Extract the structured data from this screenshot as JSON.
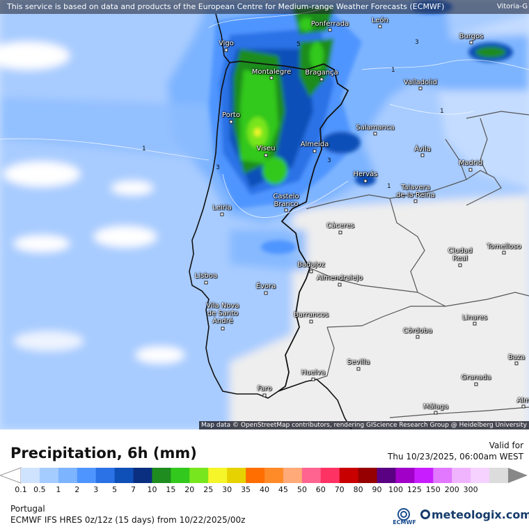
{
  "banner": {
    "text": "This service is based on data and products of the European Centre for Medium-range Weather Forecasts (ECMWF)",
    "corner_label": "Vitoria-G"
  },
  "map": {
    "attribution": "Map data © OpenStreetMap contributors, rendering GIScience Research Group @ Heidelberg University",
    "cities": [
      {
        "name": "Vigo"
      },
      {
        "name": "Ponferrada"
      },
      {
        "name": "León"
      },
      {
        "name": "Burgos"
      },
      {
        "name": "Montalegre"
      },
      {
        "name": "Bragança"
      },
      {
        "name": "Valladolid"
      },
      {
        "name": "Porto"
      },
      {
        "name": "Salamanca"
      },
      {
        "name": "Viseu"
      },
      {
        "name": "Almeida"
      },
      {
        "name": "Ávila"
      },
      {
        "name": "Madrid"
      },
      {
        "name": "Hervás"
      },
      {
        "name": "Talavera\nde la Reina"
      },
      {
        "name": "Castelo\nBranco"
      },
      {
        "name": "Leiria"
      },
      {
        "name": "Cáceres"
      },
      {
        "name": "Ciudad\nReal"
      },
      {
        "name": "Tomelloso"
      },
      {
        "name": "Badajoz"
      },
      {
        "name": "Lisboa"
      },
      {
        "name": "Almendralejo"
      },
      {
        "name": "Évora"
      },
      {
        "name": "Vila Nova\nde Santo\nAndré"
      },
      {
        "name": "Barrancos"
      },
      {
        "name": "Linares"
      },
      {
        "name": "Córdoba"
      },
      {
        "name": "Baza"
      },
      {
        "name": "Sevilla"
      },
      {
        "name": "Huelva"
      },
      {
        "name": "Granada"
      },
      {
        "name": "Faro"
      },
      {
        "name": "Málaga"
      },
      {
        "name": "Alm"
      }
    ],
    "contour_labels": [
      "1",
      "1",
      "1",
      "3",
      "3",
      "3",
      "5",
      "1"
    ]
  },
  "legend": {
    "title": "Precipitation, 6h (mm)",
    "valid_label": "Valid for",
    "valid_date": "Thu 10/23/2025, 06:00am WEST",
    "ticks": [
      "0.1",
      "0.5",
      "1",
      "2",
      "3",
      "5",
      "7",
      "10",
      "15",
      "20",
      "25",
      "30",
      "35",
      "40",
      "45",
      "50",
      "60",
      "70",
      "80",
      "90",
      "100",
      "125",
      "150",
      "200",
      "300"
    ],
    "colors": [
      "#cfe3ff",
      "#a5ccff",
      "#7db4ff",
      "#4f95ff",
      "#2a72e6",
      "#0f4fb8",
      "#0b2f80",
      "#1e8c1e",
      "#33c81e",
      "#78e61e",
      "#f5f52a",
      "#e6d200",
      "#ff6e00",
      "#ff8a28",
      "#ffaa78",
      "#ff6490",
      "#ff3264",
      "#c80000",
      "#960000",
      "#5a0082",
      "#a000c8",
      "#c81eff",
      "#e178ff",
      "#f0b4ff",
      "#f5d2ff",
      "#dcdcdc"
    ],
    "region": "Portugal",
    "model": "ECMWF IFS HRES 0z/12z (15 days)  from  10/22/2025/00z",
    "ecmwf_logo_text": "ECMWF",
    "brand": "meteologix.com"
  }
}
